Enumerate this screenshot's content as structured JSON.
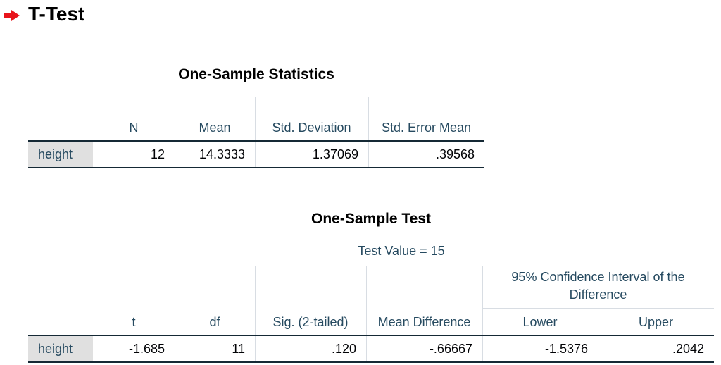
{
  "heading": "T-Test",
  "statistics_table": {
    "title": "One-Sample Statistics",
    "columns": [
      "N",
      "Mean",
      "Std. Deviation",
      "Std. Error Mean"
    ],
    "rows": [
      {
        "label": "height",
        "values": [
          "12",
          "14.3333",
          "1.37069",
          ".39568"
        ]
      }
    ]
  },
  "test_table": {
    "title": "One-Sample Test",
    "test_value": "Test Value = 15",
    "ci_header": "95% Confidence Interval of the Difference",
    "columns": [
      "t",
      "df",
      "Sig. (2-tailed)",
      "Mean Difference",
      "Lower",
      "Upper"
    ],
    "rows": [
      {
        "label": "height",
        "values": [
          "-1.685",
          "11",
          ".120",
          "-.66667",
          "-1.5376",
          ".2042"
        ]
      }
    ]
  }
}
